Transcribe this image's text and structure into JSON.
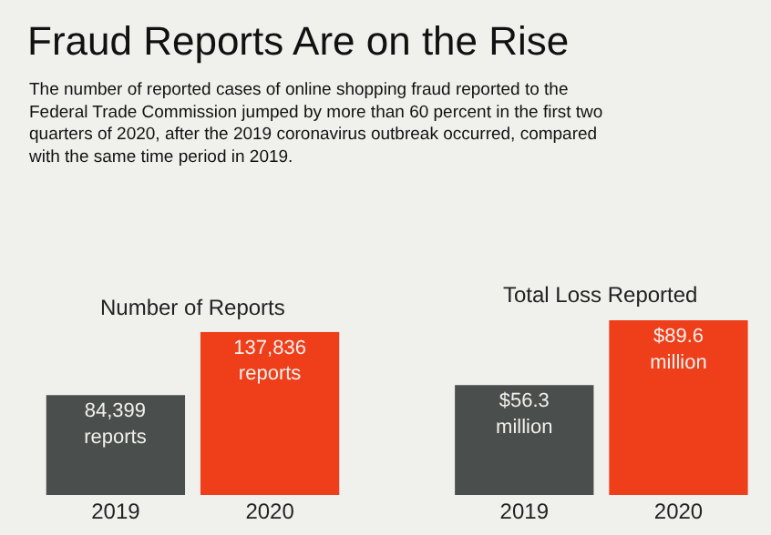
{
  "chart_data": [
    {
      "type": "bar",
      "title": "Number of Reports",
      "categories": [
        "2019",
        "2020"
      ],
      "values": [
        84399,
        137836
      ],
      "colors": [
        "#4a4e4c",
        "#ef3e1a"
      ],
      "value_labels": [
        "84,399\nreports",
        "137,836\nreports"
      ]
    },
    {
      "type": "bar",
      "title": "Total Loss Reported",
      "categories": [
        "2019",
        "2020"
      ],
      "values": [
        56300000,
        89600000
      ],
      "colors": [
        "#4a4e4c",
        "#ef3e1a"
      ],
      "value_labels": [
        "$56.3\nmillion",
        "$89.6\nmillion"
      ]
    },
    {
      "type": "other",
      "title": "Fraud Reports Are on the Rise",
      "subtitle": "The number of reported cases of online shopping fraud reported to the\nFederal Trade Commission jumped by more than 60 percent in the first two\nquarters of 2020, after the 2019 coronavirus outbreak occurred, compared\nwith the same time period in 2019."
    }
  ]
}
